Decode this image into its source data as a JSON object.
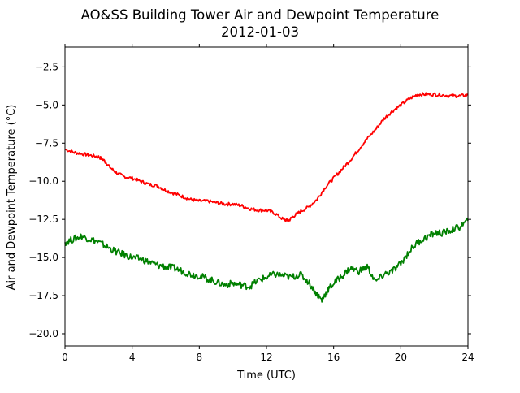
{
  "chart_data": {
    "type": "line",
    "title": "AO&SS Building Tower Air and Dewpoint Temperature",
    "subtitle": "2012-01-03",
    "xlabel": "Time (UTC)",
    "ylabel": "Air and Dewpoint Temperature (°C)",
    "xlim": [
      0,
      24
    ],
    "ylim": [
      -20.8,
      -1.2
    ],
    "xticks": [
      0,
      4,
      8,
      12,
      16,
      20,
      24
    ],
    "yticks": [
      -2.5,
      -5.0,
      -7.5,
      -10.0,
      -12.5,
      -15.0,
      -17.5,
      -20.0
    ],
    "ytick_labels": [
      "−2.5",
      "−5.0",
      "−7.5",
      "−10.0",
      "−12.5",
      "−15.0",
      "−17.5",
      "−20.0"
    ],
    "grid": false,
    "legend": "none",
    "series": [
      {
        "color": "#ff0000",
        "x": [
          0,
          0.5,
          1,
          1.5,
          2,
          2.3,
          2.6,
          3,
          3.5,
          4,
          4.5,
          5,
          5.5,
          6,
          6.5,
          7,
          7.5,
          8,
          8.5,
          9,
          9.5,
          10,
          10.5,
          11,
          11.5,
          12,
          12.5,
          13,
          13.3,
          13.6,
          14,
          14.5,
          15,
          15.5,
          16,
          16.5,
          17,
          17.5,
          18,
          18.5,
          19,
          19.5,
          20,
          20.5,
          21,
          21.5,
          22,
          22.5,
          23,
          23.5,
          24
        ],
        "values": [
          -7.9,
          -8.1,
          -8.2,
          -8.3,
          -8.4,
          -8.6,
          -9.0,
          -9.4,
          -9.7,
          -9.8,
          -10.0,
          -10.2,
          -10.3,
          -10.6,
          -10.8,
          -11.0,
          -11.2,
          -11.3,
          -11.3,
          -11.4,
          -11.5,
          -11.5,
          -11.6,
          -11.8,
          -11.9,
          -11.9,
          -12.1,
          -12.5,
          -12.6,
          -12.3,
          -12.0,
          -11.7,
          -11.2,
          -10.4,
          -9.8,
          -9.2,
          -8.6,
          -7.9,
          -7.2,
          -6.6,
          -5.9,
          -5.4,
          -5.0,
          -4.6,
          -4.3,
          -4.3,
          -4.3,
          -4.35,
          -4.4,
          -4.4,
          -4.35
        ]
      },
      {
        "color": "#008000",
        "x": [
          0,
          0.5,
          1,
          1.5,
          2,
          2.5,
          3,
          3.5,
          4,
          4.5,
          5,
          5.5,
          6,
          6.5,
          7,
          7.5,
          8,
          8.5,
          9,
          9.5,
          10,
          10.5,
          11,
          11.5,
          12,
          12.5,
          13,
          13.5,
          14,
          14.5,
          15,
          15.3,
          15.6,
          16,
          16.5,
          17,
          17.5,
          18,
          18.5,
          19,
          19.5,
          20,
          20.5,
          21,
          21.5,
          22,
          22.5,
          23,
          23.5,
          24
        ],
        "values": [
          -14.0,
          -13.8,
          -13.6,
          -13.8,
          -14.0,
          -14.3,
          -14.6,
          -14.8,
          -15.0,
          -15.1,
          -15.3,
          -15.5,
          -15.6,
          -15.7,
          -15.9,
          -16.1,
          -16.2,
          -16.4,
          -16.6,
          -16.8,
          -16.7,
          -16.8,
          -16.9,
          -16.5,
          -16.3,
          -16.1,
          -16.2,
          -16.3,
          -16.1,
          -16.6,
          -17.4,
          -17.8,
          -17.2,
          -16.7,
          -16.2,
          -15.7,
          -15.9,
          -15.6,
          -16.6,
          -16.1,
          -15.9,
          -15.4,
          -14.6,
          -14.0,
          -13.7,
          -13.4,
          -13.4,
          -13.2,
          -13.0,
          -12.6
        ]
      }
    ]
  }
}
